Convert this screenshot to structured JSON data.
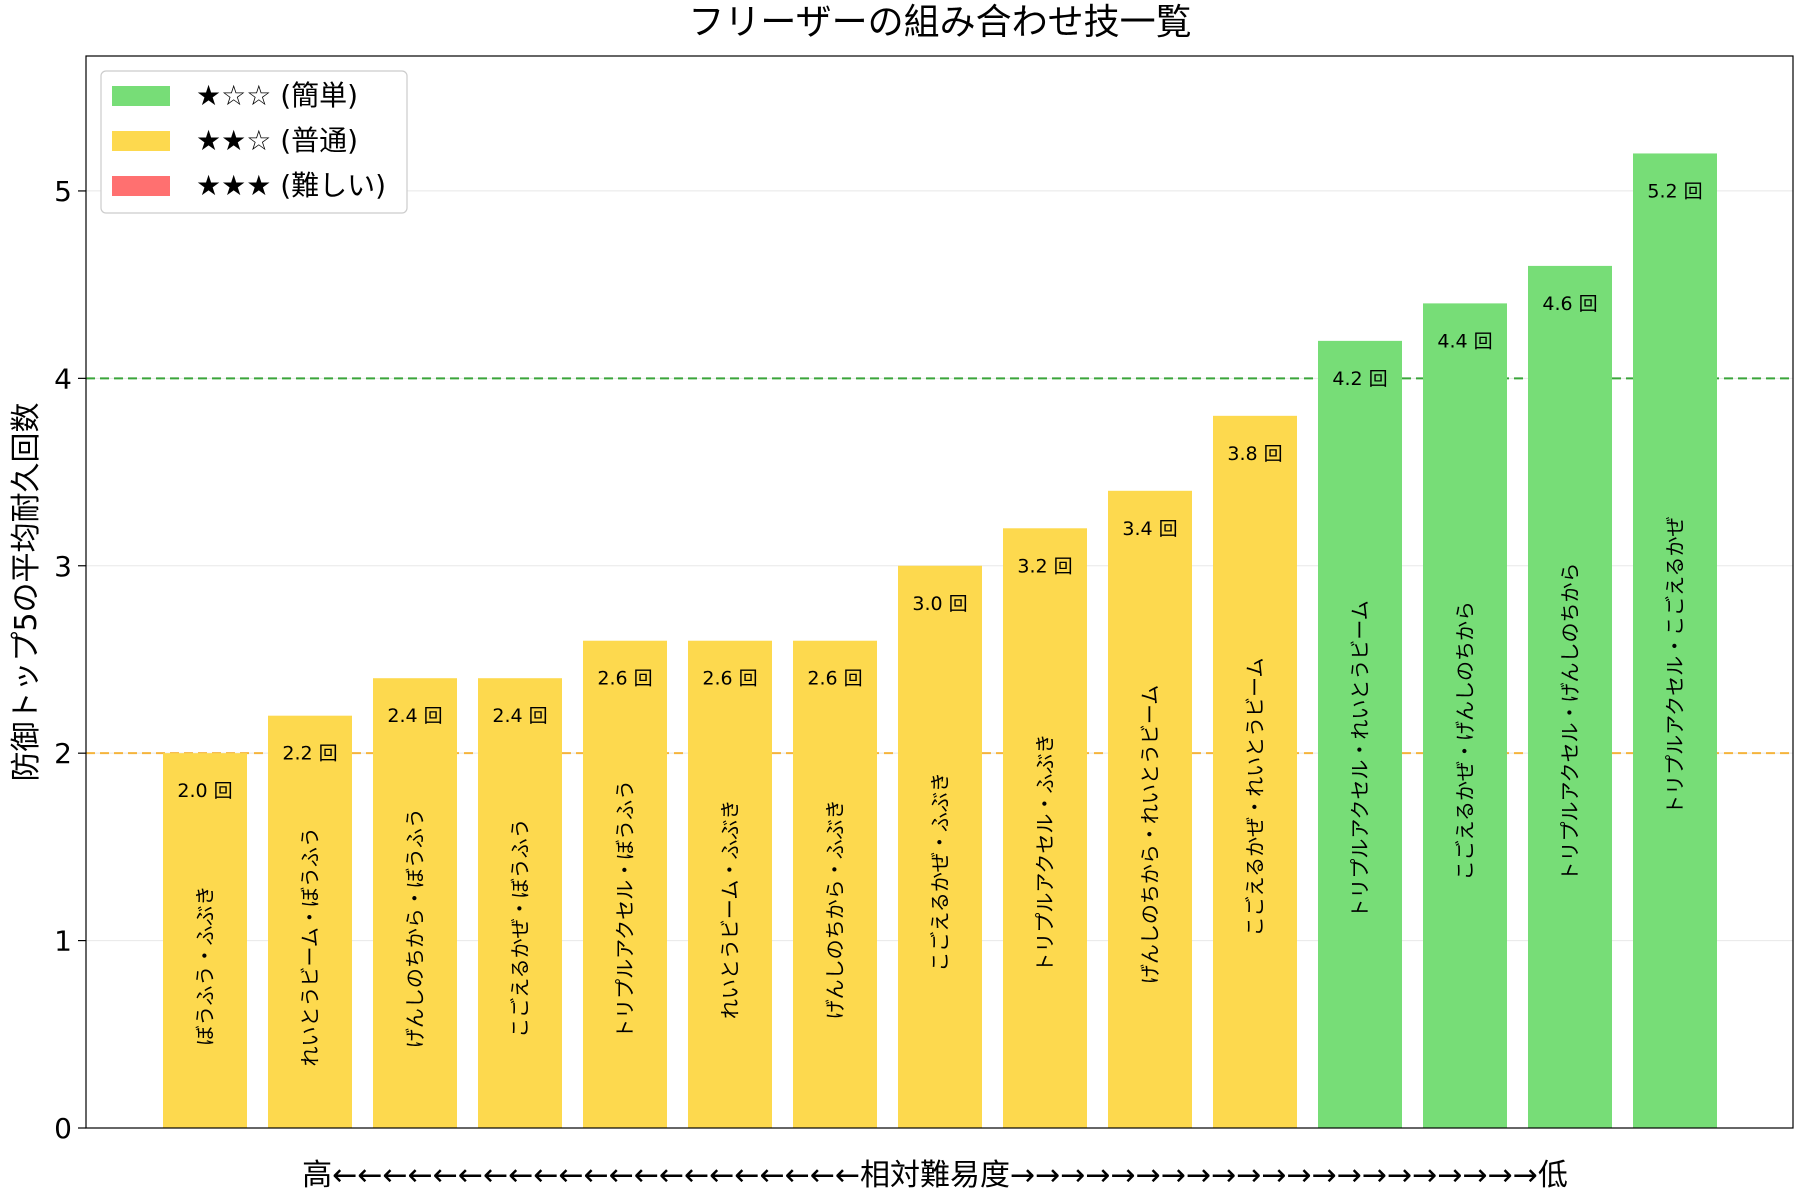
{
  "chart_data": {
    "type": "bar",
    "title": "フリーザーの組み合わせ技一覧",
    "ylabel": "防御トップ5の平均耐久回数",
    "xlabel": "高←←←←←←←←←←←←←←←←←←←←←相対難易度→→→→→→→→→→→→→→→→→→→→→低",
    "ylim": [
      0,
      5.72
    ],
    "yticks": [
      0,
      1,
      2,
      3,
      4,
      5
    ],
    "value_suffix": " 回",
    "grid": "y",
    "legend_position": "top-left",
    "categories": [
      "ぼうふう・ふぶき",
      "れいとうビーム・ぼうふう",
      "げんしのちから・ぼうふう",
      "こごえるかぜ・ぼうふう",
      "トリプルアクセル・ぼうふう",
      "れいとうビーム・ふぶき",
      "げんしのちから・ふぶき",
      "こごえるかぜ・ふぶき",
      "トリプルアクセル・ふぶき",
      "げんしのちから・れいとうビーム",
      "こごえるかぜ・れいとうビーム",
      "トリプルアクセル・れいとうビーム",
      "こごえるかぜ・げんしのちから",
      "トリプルアクセル・げんしのちから",
      "トリプルアクセル・こごえるかぜ"
    ],
    "values": [
      2.0,
      2.2,
      2.4,
      2.4,
      2.6,
      2.6,
      2.6,
      3.0,
      3.2,
      3.4,
      3.8,
      4.2,
      4.4,
      4.6,
      5.2
    ],
    "value_labels": [
      "2.0 回",
      "2.2 回",
      "2.4 回",
      "2.4 回",
      "2.6 回",
      "2.6 回",
      "2.6 回",
      "3.0 回",
      "3.2 回",
      "3.4 回",
      "3.8 回",
      "4.2 回",
      "4.4 回",
      "4.6 回",
      "5.2 回"
    ],
    "difficulty": [
      "normal",
      "normal",
      "normal",
      "normal",
      "normal",
      "normal",
      "normal",
      "normal",
      "normal",
      "normal",
      "normal",
      "easy",
      "easy",
      "easy",
      "easy"
    ],
    "legend": [
      {
        "key": "easy",
        "label": "★☆☆ (簡単)",
        "color": "#77dd77"
      },
      {
        "key": "normal",
        "label": "★★☆ (普通)",
        "color": "#fdd94e"
      },
      {
        "key": "hard",
        "label": "★★★ (難しい)",
        "color": "#ff7070"
      }
    ],
    "reference_lines": [
      {
        "y": 4,
        "color": "#3aa53a",
        "style": "dashed"
      },
      {
        "y": 2,
        "color": "#f5b43c",
        "style": "dashed"
      }
    ]
  }
}
